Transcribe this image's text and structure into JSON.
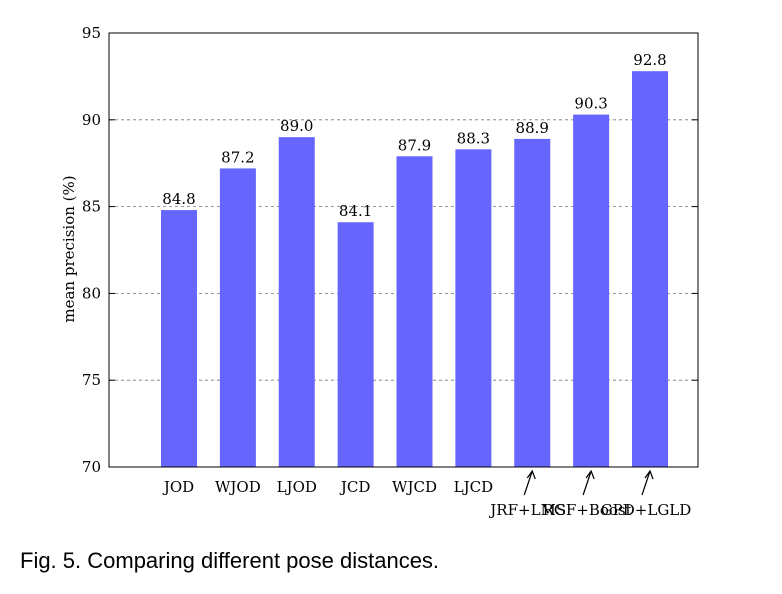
{
  "caption": "Fig. 5. Comparing different pose distances.",
  "chart_data": {
    "type": "bar",
    "title": "",
    "xlabel": "",
    "ylabel": "mean precision (%)",
    "ylim": [
      70,
      95
    ],
    "yticks": [
      70,
      75,
      80,
      85,
      90,
      95
    ],
    "grid": "y-dashed",
    "bar_color": "#6666ff",
    "categories": [
      "JOD",
      "WJOD",
      "LJOD",
      "JCD",
      "WJCD",
      "LJCD",
      "JRF+LMS",
      "RGF+Boost",
      "GPD+LGLD"
    ],
    "values": [
      84.8,
      87.2,
      89.0,
      84.1,
      87.9,
      88.3,
      88.9,
      90.3,
      92.8
    ],
    "value_labels": [
      "84.8",
      "87.2",
      "89.0",
      "84.1",
      "87.9",
      "88.3",
      "88.9",
      "90.3",
      "92.8"
    ],
    "annotated_categories": [
      "JRF+LMS",
      "RGF+Boost",
      "GPD+LGLD"
    ]
  }
}
